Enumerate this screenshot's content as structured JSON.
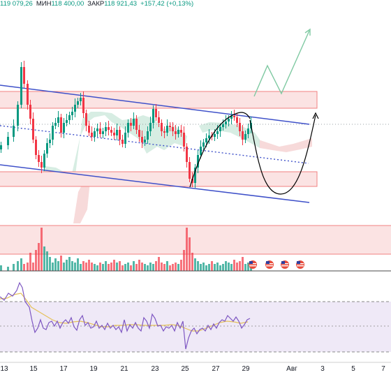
{
  "ohlc": {
    "open_value": "119 079,26",
    "low_label": "МИН",
    "low_value": "118 400,00",
    "close_label": "ЗАКР",
    "close_value": "118 921,43",
    "change": "+157,42 (+0,13%)"
  },
  "colors": {
    "up": "#089981",
    "down": "#f23645",
    "channel": "#3f51c9",
    "zone_fill": "#fbe3e3",
    "zone_border": "#f08080",
    "cloud_green": "#cde8dc",
    "cloud_red": "#f6d6d6",
    "rsi_line": "#7e57c2",
    "rsi_ma": "#e5c15a",
    "rsi_band": "#efe9f7"
  },
  "icons": [
    "us-flag-icon",
    "us-flag-icon",
    "us-flag-icon",
    "us-flag-icon"
  ],
  "x_axis": {
    "ticks": [
      "13",
      "15",
      "17",
      "19",
      "21",
      "23",
      "25",
      "27",
      "29",
      "Авг",
      "3",
      "5",
      "7"
    ]
  },
  "chart_data": {
    "type": "candlestick",
    "x_tick_labels": [
      "13",
      "15",
      "17",
      "19",
      "21",
      "23",
      "25",
      "27",
      "29",
      "Авг",
      "3",
      "5",
      "7"
    ],
    "ohlc_shown": {
      "low": 118400.0,
      "close": 118921.43,
      "change": 157.42,
      "change_pct": 0.13
    },
    "annotations": [
      "descending-channel",
      "supply-zone",
      "demand-zone",
      "projected-path-arrow",
      "curved-projection-arrow"
    ],
    "indicators": [
      "volume",
      "ichimoku-cloud",
      "rsi"
    ]
  }
}
